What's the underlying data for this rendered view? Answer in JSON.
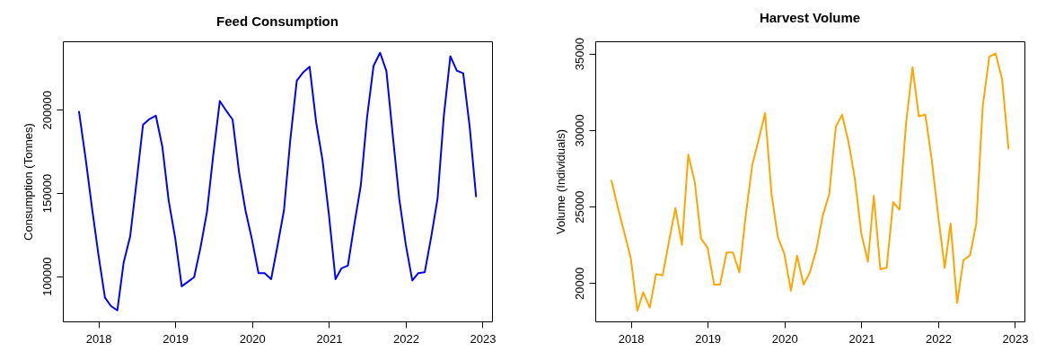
{
  "chart_data": [
    {
      "type": "line",
      "title": "Feed Consumption",
      "ylabel": "Consumption (Tonnes)",
      "grid": false,
      "x": [
        "2017-10",
        "2017-11",
        "2017-12",
        "2018-01",
        "2018-02",
        "2018-03",
        "2018-04",
        "2018-05",
        "2018-06",
        "2018-07",
        "2018-08",
        "2018-09",
        "2018-10",
        "2018-11",
        "2018-12",
        "2019-01",
        "2019-02",
        "2019-03",
        "2019-04",
        "2019-05",
        "2019-06",
        "2019-07",
        "2019-08",
        "2019-09",
        "2019-10",
        "2019-11",
        "2019-12",
        "2020-01",
        "2020-02",
        "2020-03",
        "2020-04",
        "2020-05",
        "2020-06",
        "2020-07",
        "2020-08",
        "2020-09",
        "2020-10",
        "2020-11",
        "2020-12",
        "2021-01",
        "2021-02",
        "2021-03",
        "2021-04",
        "2021-05",
        "2021-06",
        "2021-07",
        "2021-08",
        "2021-09",
        "2021-10",
        "2021-11",
        "2021-12",
        "2022-01",
        "2022-02",
        "2022-03",
        "2022-04",
        "2022-05",
        "2022-06",
        "2022-07",
        "2022-08",
        "2022-09",
        "2022-10",
        "2022-11",
        "2022-12"
      ],
      "series": [
        {
          "color": "#0000ff",
          "values": [
            198800,
            171000,
            141600,
            113100,
            87200,
            82100,
            79400,
            108200,
            123900,
            156300,
            191000,
            194500,
            196500,
            177800,
            145500,
            122900,
            93900,
            96500,
            99400,
            117000,
            138600,
            172900,
            205300,
            199400,
            194100,
            162200,
            139600,
            122000,
            101800,
            101800,
            98200,
            118000,
            139600,
            181800,
            217500,
            222600,
            225900,
            192500,
            170000,
            136700,
            98200,
            104700,
            106300,
            130800,
            154300,
            195500,
            226500,
            234300,
            223300,
            183700,
            146500,
            119000,
            97400,
            101800,
            102300,
            122900,
            146500,
            196500,
            232200,
            223500,
            222000,
            189600,
            148000
          ]
        }
      ],
      "xlim": [
        "2017-07-16",
        "2023-02-15"
      ],
      "xticks": [
        "2018",
        "2019",
        "2020",
        "2021",
        "2022",
        "2023"
      ],
      "ylim": [
        72800,
        241200
      ],
      "yticks": [
        100000,
        150000,
        200000
      ]
    },
    {
      "type": "line",
      "title": "Harvest Volume",
      "ylabel": "Volume (Individuals)",
      "grid": false,
      "x": [
        "2017-10",
        "2017-11",
        "2017-12",
        "2018-01",
        "2018-02",
        "2018-03",
        "2018-04",
        "2018-05",
        "2018-06",
        "2018-07",
        "2018-08",
        "2018-09",
        "2018-10",
        "2018-11",
        "2018-12",
        "2019-01",
        "2019-02",
        "2019-03",
        "2019-04",
        "2019-05",
        "2019-06",
        "2019-07",
        "2019-08",
        "2019-09",
        "2019-10",
        "2019-11",
        "2019-12",
        "2020-01",
        "2020-02",
        "2020-03",
        "2020-04",
        "2020-05",
        "2020-06",
        "2020-07",
        "2020-08",
        "2020-09",
        "2020-10",
        "2020-11",
        "2020-12",
        "2021-01",
        "2021-02",
        "2021-03",
        "2021-04",
        "2021-05",
        "2021-06",
        "2021-07",
        "2021-08",
        "2021-09",
        "2021-10",
        "2021-11",
        "2021-12",
        "2022-01",
        "2022-02",
        "2022-03",
        "2022-04",
        "2022-05",
        "2022-06",
        "2022-07",
        "2022-08",
        "2022-09",
        "2022-10",
        "2022-11",
        "2022-12"
      ],
      "series": [
        {
          "color": "#ffa500",
          "values": [
            26700,
            24900,
            23300,
            21600,
            18200,
            19400,
            18400,
            20600,
            20500,
            22700,
            24900,
            22500,
            28400,
            26600,
            22900,
            22300,
            19900,
            19900,
            22000,
            22000,
            20700,
            24400,
            27700,
            29400,
            31100,
            25800,
            23000,
            21900,
            19500,
            21800,
            19900,
            20700,
            22200,
            24400,
            25800,
            30200,
            31000,
            29200,
            26800,
            23200,
            21400,
            25700,
            20900,
            21000,
            25300,
            24800,
            30400,
            34100,
            30900,
            31000,
            28100,
            24400,
            21000,
            23900,
            18700,
            21500,
            21800,
            23900,
            31600,
            34800,
            35000,
            33300,
            28800
          ]
        }
      ],
      "xlim": [
        "2017-07-16",
        "2023-02-15"
      ],
      "xticks": [
        "2018",
        "2019",
        "2020",
        "2021",
        "2022",
        "2023"
      ],
      "ylim": [
        17500,
        35800
      ],
      "yticks": [
        20000,
        25000,
        30000,
        35000
      ]
    }
  ]
}
